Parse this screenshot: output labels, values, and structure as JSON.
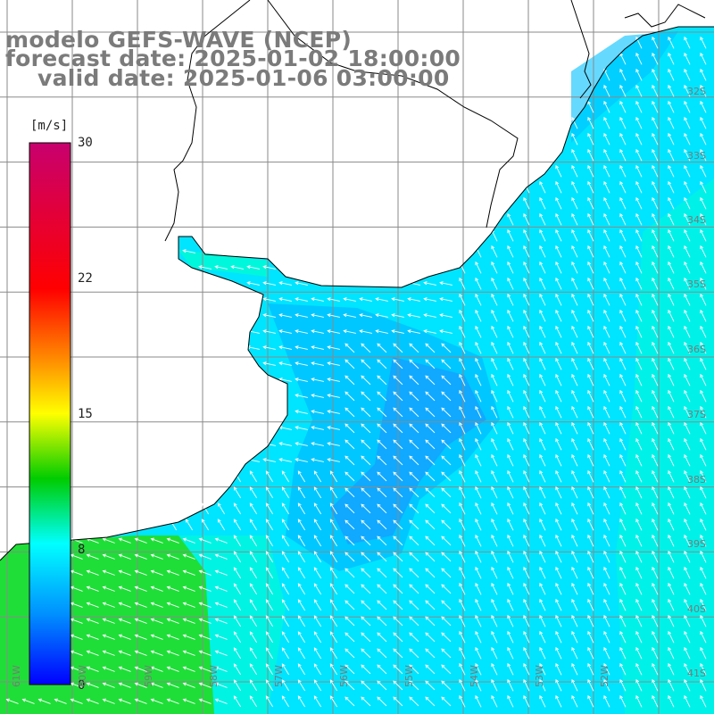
{
  "title": {
    "line1": "modelo GEFS-WAVE (NCEP)",
    "line2": "forecast date: 2025-01-02 18:00:00",
    "line3": "valid date: 2025-01-06 03:00:00"
  },
  "colorbar": {
    "unit": "[m/s]",
    "ticks": [
      "30",
      "22",
      "15",
      "8",
      "0"
    ],
    "tick_values": [
      30,
      22,
      15,
      8,
      0
    ],
    "colors": [
      "#c8006e",
      "#ff0000",
      "#ff8c00",
      "#ffff00",
      "#00cc00",
      "#00ffff",
      "#0060ff",
      "#0000ff"
    ]
  },
  "map": {
    "lat_labels": [
      "32S",
      "33S",
      "34S",
      "35S",
      "36S",
      "37S",
      "38S",
      "39S",
      "40S",
      "41S"
    ],
    "lon_labels": [
      "61W",
      "60W",
      "59W",
      "58W",
      "57W",
      "56W",
      "55W",
      "54W",
      "53W",
      "52W"
    ],
    "ocean_colors": {
      "deep": "#1e90ff",
      "mid": "#00bfff",
      "light": "#00e5ff",
      "cyan_green": "#00ffcc",
      "green": "#22dd22"
    },
    "arrow_color": "#ffffff",
    "coast_color": "#000000",
    "grid_color": "#8a8a8a"
  }
}
